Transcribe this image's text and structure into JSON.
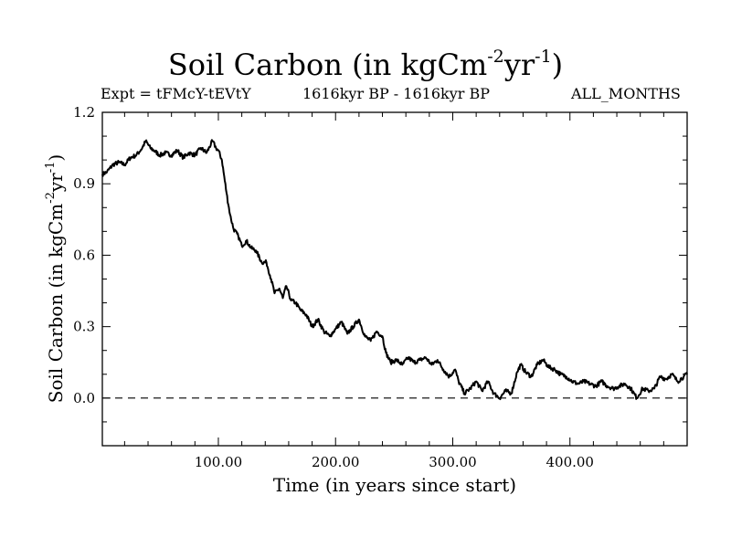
{
  "chart_data": {
    "type": "line",
    "title_main": "Soil Carbon (in kgCm",
    "title_exp1": "-2",
    "title_mid": "yr",
    "title_exp2": "-1",
    "title_close": ")",
    "expt_label": "Expt = tFMcY-tEVtY",
    "period_label": "1616kyr BP - 1616kyr BP",
    "months_label": "ALL_MONTHS",
    "xlabel": "Time (in years since start)",
    "ylabel_main": "Soil Carbon (in kgCm",
    "ylabel_exp1": "-2",
    "ylabel_mid": "yr",
    "ylabel_exp2": "-1",
    "ylabel_close": ")",
    "xlim": [
      1,
      500
    ],
    "ylim": [
      -0.2,
      1.2
    ],
    "x_ticks": [
      100,
      200,
      300,
      400
    ],
    "x_tick_labels": [
      "100.00",
      "200.00",
      "300.00",
      "400.00"
    ],
    "y_ticks": [
      0.0,
      0.3,
      0.6,
      0.9,
      1.2
    ],
    "y_tick_labels": [
      "0.0",
      "0.3",
      "0.6",
      "0.9",
      "1.2"
    ],
    "reference_line": 0.0,
    "series": [
      {
        "name": "Soil Carbon",
        "x": [
          1,
          5,
          10,
          15,
          20,
          25,
          30,
          35,
          38,
          42,
          45,
          50,
          55,
          60,
          65,
          70,
          75,
          80,
          85,
          90,
          95,
          98,
          100,
          103,
          107,
          110,
          113,
          117,
          120,
          124,
          128,
          132,
          137,
          141,
          145,
          148,
          152,
          155,
          158,
          162,
          166,
          170,
          175,
          180,
          185,
          190,
          195,
          200,
          205,
          210,
          215,
          220,
          225,
          230,
          235,
          240,
          243,
          247,
          252,
          257,
          262,
          267,
          272,
          277,
          282,
          287,
          292,
          297,
          302,
          305,
          310,
          315,
          320,
          325,
          330,
          335,
          340,
          345,
          350,
          355,
          358,
          362,
          367,
          372,
          377,
          382,
          387,
          392,
          397,
          402,
          407,
          412,
          417,
          422,
          427,
          432,
          437,
          442,
          447,
          452,
          457,
          462,
          467,
          472,
          477,
          482,
          487,
          492,
          497,
          500
        ],
        "y": [
          0.94,
          0.95,
          0.98,
          0.99,
          0.98,
          1.01,
          1.02,
          1.05,
          1.08,
          1.05,
          1.04,
          1.02,
          1.03,
          1.02,
          1.04,
          1.01,
          1.03,
          1.02,
          1.05,
          1.03,
          1.08,
          1.05,
          1.04,
          1.0,
          0.86,
          0.77,
          0.71,
          0.68,
          0.64,
          0.66,
          0.63,
          0.62,
          0.57,
          0.57,
          0.5,
          0.44,
          0.46,
          0.42,
          0.47,
          0.41,
          0.4,
          0.37,
          0.35,
          0.3,
          0.33,
          0.28,
          0.26,
          0.29,
          0.32,
          0.27,
          0.3,
          0.33,
          0.26,
          0.24,
          0.28,
          0.26,
          0.19,
          0.15,
          0.16,
          0.14,
          0.17,
          0.15,
          0.16,
          0.17,
          0.14,
          0.16,
          0.12,
          0.09,
          0.12,
          0.07,
          0.02,
          0.04,
          0.07,
          0.03,
          0.07,
          0.02,
          0.0,
          0.03,
          0.02,
          0.11,
          0.14,
          0.11,
          0.09,
          0.14,
          0.16,
          0.13,
          0.12,
          0.1,
          0.09,
          0.07,
          0.06,
          0.07,
          0.06,
          0.05,
          0.07,
          0.05,
          0.04,
          0.05,
          0.06,
          0.04,
          0.0,
          0.04,
          0.03,
          0.04,
          0.09,
          0.08,
          0.1,
          0.07,
          0.09,
          0.1
        ]
      }
    ]
  }
}
